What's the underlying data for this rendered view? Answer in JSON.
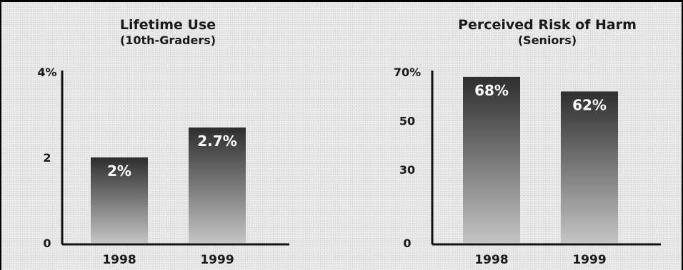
{
  "chart_data": [
    {
      "type": "bar",
      "title": "Lifetime Use",
      "subtitle": "(10th-Graders)",
      "categories": [
        "1998",
        "1999"
      ],
      "values": [
        2,
        2.7
      ],
      "data_labels": [
        "2%",
        "2.7%"
      ],
      "yticks": [
        0,
        2,
        4
      ],
      "ytick_labels": [
        "0",
        "2",
        "4%"
      ],
      "ylim": [
        0,
        4
      ],
      "grid": false,
      "legend": "none"
    },
    {
      "type": "bar",
      "title": "Perceived Risk of Harm",
      "subtitle": "(Seniors)",
      "categories": [
        "1998",
        "1999"
      ],
      "values": [
        68,
        62
      ],
      "data_labels": [
        "68%",
        "62%"
      ],
      "yticks": [
        0,
        30,
        50,
        70
      ],
      "ytick_labels": [
        "0",
        "30",
        "50",
        "70%"
      ],
      "ylim": [
        0,
        70
      ],
      "grid": false,
      "legend": "none"
    }
  ],
  "colors": {
    "bar_top": "#2e2e2e",
    "bar_bottom": "#c4c4c4",
    "axis": "#111111",
    "label_text": "#ffffff"
  }
}
